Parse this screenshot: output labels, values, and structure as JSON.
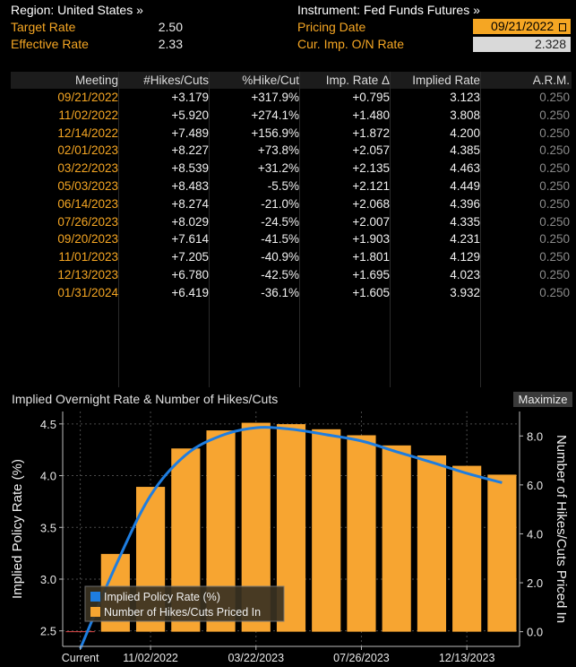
{
  "header": {
    "region_label": "Region: United States »",
    "target_rate_label": "Target Rate",
    "target_rate_value": "2.50",
    "effective_rate_label": "Effective Rate",
    "effective_rate_value": "2.33",
    "instrument_label": "Instrument: Fed Funds Futures »",
    "pricing_date_label": "Pricing Date",
    "pricing_date_value": "09/21/2022",
    "cur_imp_label": "Cur. Imp. O/N Rate",
    "cur_imp_value": "2.328"
  },
  "table": {
    "columns": [
      "Meeting",
      "#Hikes/Cuts",
      "%Hike/Cut",
      "Imp. Rate Δ",
      "Implied Rate",
      "A.R.M."
    ],
    "rows": [
      {
        "meeting": "09/21/2022",
        "hikes": "+3.179",
        "pct": "+317.9%",
        "delta": "+0.795",
        "implied": "3.123",
        "arm": "0.250"
      },
      {
        "meeting": "11/02/2022",
        "hikes": "+5.920",
        "pct": "+274.1%",
        "delta": "+1.480",
        "implied": "3.808",
        "arm": "0.250"
      },
      {
        "meeting": "12/14/2022",
        "hikes": "+7.489",
        "pct": "+156.9%",
        "delta": "+1.872",
        "implied": "4.200",
        "arm": "0.250"
      },
      {
        "meeting": "02/01/2023",
        "hikes": "+8.227",
        "pct": "+73.8%",
        "delta": "+2.057",
        "implied": "4.385",
        "arm": "0.250"
      },
      {
        "meeting": "03/22/2023",
        "hikes": "+8.539",
        "pct": "+31.2%",
        "delta": "+2.135",
        "implied": "4.463",
        "arm": "0.250"
      },
      {
        "meeting": "05/03/2023",
        "hikes": "+8.483",
        "pct": "-5.5%",
        "delta": "+2.121",
        "implied": "4.449",
        "arm": "0.250"
      },
      {
        "meeting": "06/14/2023",
        "hikes": "+8.274",
        "pct": "-21.0%",
        "delta": "+2.068",
        "implied": "4.396",
        "arm": "0.250"
      },
      {
        "meeting": "07/26/2023",
        "hikes": "+8.029",
        "pct": "-24.5%",
        "delta": "+2.007",
        "implied": "4.335",
        "arm": "0.250"
      },
      {
        "meeting": "09/20/2023",
        "hikes": "+7.614",
        "pct": "-41.5%",
        "delta": "+1.903",
        "implied": "4.231",
        "arm": "0.250"
      },
      {
        "meeting": "11/01/2023",
        "hikes": "+7.205",
        "pct": "-40.9%",
        "delta": "+1.801",
        "implied": "4.129",
        "arm": "0.250"
      },
      {
        "meeting": "12/13/2023",
        "hikes": "+6.780",
        "pct": "-42.5%",
        "delta": "+1.695",
        "implied": "4.023",
        "arm": "0.250"
      },
      {
        "meeting": "01/31/2024",
        "hikes": "+6.419",
        "pct": "-36.1%",
        "delta": "+1.605",
        "implied": "3.932",
        "arm": "0.250"
      }
    ]
  },
  "chart_title": "Implied Overnight Rate & Number of Hikes/Cuts",
  "maximize_label": "Maximize",
  "chart_data": {
    "type": "bar",
    "categories": [
      "Current",
      "09/21/2022",
      "11/02/2022",
      "12/14/2022",
      "02/01/2023",
      "03/22/2023",
      "05/03/2023",
      "06/14/2023",
      "07/26/2023",
      "09/20/2023",
      "11/01/2023",
      "12/13/2023",
      "01/31/2024"
    ],
    "x_tick_labels": [
      "Current",
      "11/02/2022",
      "03/22/2023",
      "07/26/2023",
      "12/13/2023"
    ],
    "series": [
      {
        "name": "Implied Policy Rate (%)",
        "type": "line",
        "axis": "left",
        "color": "#1e7de0",
        "values": [
          2.328,
          3.123,
          3.808,
          4.2,
          4.385,
          4.463,
          4.449,
          4.396,
          4.335,
          4.231,
          4.129,
          4.023,
          3.932
        ]
      },
      {
        "name": "Number of Hikes/Cuts Priced In",
        "type": "bar",
        "axis": "right",
        "color": "#f7a531",
        "values": [
          0,
          3.179,
          5.92,
          7.489,
          8.227,
          8.539,
          8.483,
          8.274,
          8.029,
          7.614,
          7.205,
          6.78,
          6.419
        ]
      }
    ],
    "ylabel": "Implied Policy Rate (%)",
    "y2label": "Number of Hikes/Cuts Priced In",
    "y_ticks": [
      "2.5",
      "3.0",
      "3.5",
      "4.0",
      "4.5"
    ],
    "y2_ticks": [
      "0.0",
      "2.0",
      "4.0",
      "6.0",
      "8.0"
    ],
    "ylim": [
      2.35,
      4.62
    ],
    "y2lim": [
      -0.6,
      9.0
    ],
    "legend_position": "bottom-left",
    "grid": true
  }
}
